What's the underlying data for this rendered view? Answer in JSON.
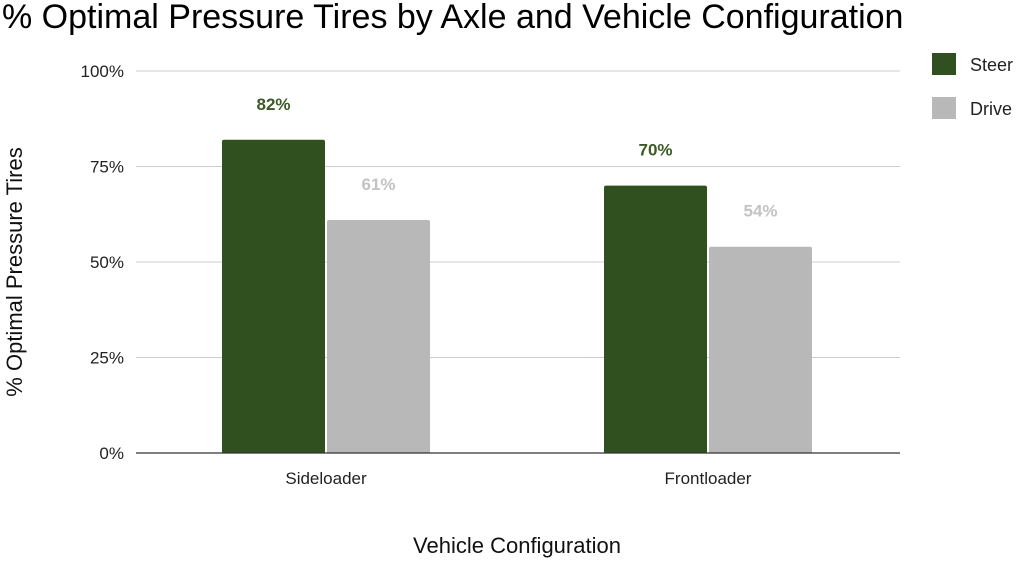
{
  "chart_data": {
    "type": "bar",
    "title": "% Optimal Pressure Tires by Axle and Vehicle Configuration",
    "xlabel": "Vehicle Configuration",
    "ylabel": "% Optimal Pressure Tires",
    "categories": [
      "Sideloader",
      "Frontloader"
    ],
    "series": [
      {
        "name": "Steer",
        "values": [
          82,
          70
        ],
        "labels": [
          "82%",
          "70%"
        ],
        "color": "#30501f",
        "label_color": "#3d5a26"
      },
      {
        "name": "Drive",
        "values": [
          61,
          54
        ],
        "labels": [
          "61%",
          "54%"
        ],
        "color": "#b8b8b8",
        "label_color": "#c3c3c3"
      }
    ],
    "ylim": [
      0,
      100
    ],
    "yticks": [
      0,
      25,
      50,
      75,
      100
    ],
    "ytick_labels": [
      "0%",
      "25%",
      "50%",
      "75%",
      "100%"
    ],
    "grid": true,
    "legend_position": "top-right",
    "grid_color": "#cccccc",
    "axis_color": "#333333"
  }
}
